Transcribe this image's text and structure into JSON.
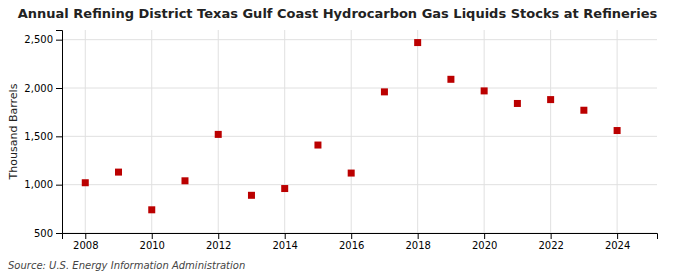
{
  "chart_data": {
    "type": "scatter",
    "title": "Annual Refining District Texas Gulf Coast Hydrocarbon Gas Liquids Stocks at Refineries",
    "ylabel": "Thousand Barrels",
    "annotations": [
      "Source: U.S. Energy Information Administration"
    ],
    "x": [
      2008,
      2009,
      2010,
      2011,
      2012,
      2013,
      2014,
      2015,
      2016,
      2017,
      2018,
      2019,
      2020,
      2021,
      2022,
      2023,
      2024
    ],
    "values": [
      1020,
      1130,
      740,
      1040,
      1520,
      890,
      960,
      1410,
      1120,
      1960,
      2470,
      2090,
      1970,
      1840,
      1880,
      1770,
      1560
    ],
    "color": "#bb0000",
    "marker": "square",
    "xlim": [
      2007.3,
      2025.2
    ],
    "xticks": [
      2008,
      2010,
      2012,
      2014,
      2016,
      2018,
      2020,
      2022,
      2024
    ],
    "ylim": [
      500,
      2600
    ],
    "yticks": [
      500,
      {
        "value": 1000,
        "label": "1,000"
      },
      {
        "value": 1500,
        "label": "1,500"
      },
      {
        "value": 2000,
        "label": "2,000"
      },
      {
        "value": 2500,
        "label": "2,500"
      }
    ],
    "grid": true
  }
}
